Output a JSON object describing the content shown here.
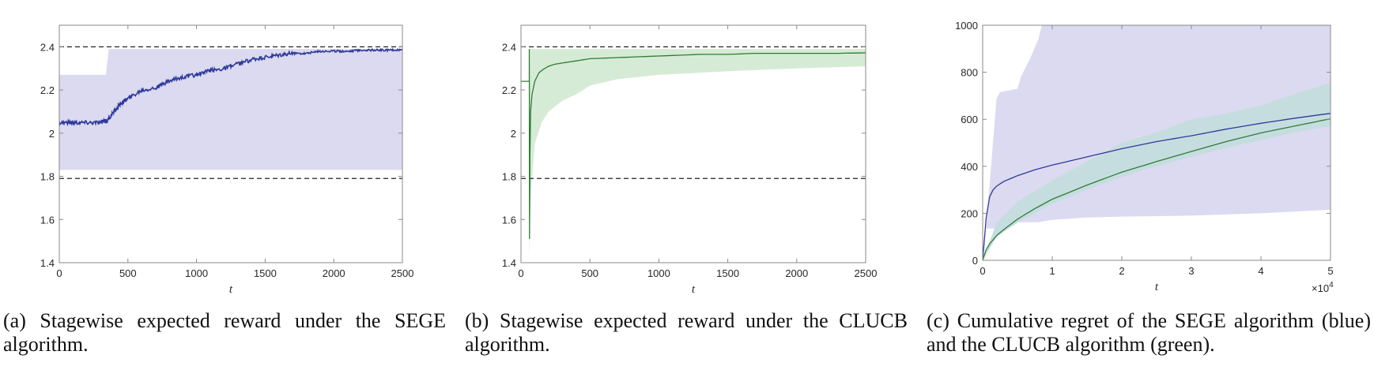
{
  "chart_data": [
    {
      "id": "a",
      "type": "line",
      "title": "",
      "xlabel": "t",
      "ylabel": "",
      "xlim": [
        0,
        2500
      ],
      "ylim": [
        1.4,
        2.5
      ],
      "xticks": [
        0,
        500,
        1000,
        1500,
        2000,
        2500
      ],
      "yticks": [
        1.4,
        1.6,
        1.8,
        2,
        2.2,
        2.4
      ],
      "xtick_labels": [
        "0",
        "500",
        "1000",
        "1500",
        "2000",
        "2500"
      ],
      "ytick_labels": [
        "1.4",
        "1.6",
        "1.8",
        "2",
        "2.2",
        "2.4"
      ],
      "grid": false,
      "reference_lines": [
        2.4,
        1.79
      ],
      "series": [
        {
          "name": "SEGE expected reward (mean)",
          "color": "#2e3a9a",
          "x": [
            0,
            100,
            200,
            300,
            350,
            400,
            450,
            500,
            600,
            700,
            800,
            900,
            1000,
            1100,
            1200,
            1300,
            1400,
            1500,
            1600,
            1700,
            1800,
            1900,
            2000,
            2100,
            2200,
            2300,
            2400,
            2500
          ],
          "y": [
            2.05,
            2.05,
            2.05,
            2.05,
            2.06,
            2.1,
            2.14,
            2.16,
            2.2,
            2.21,
            2.24,
            2.26,
            2.27,
            2.29,
            2.3,
            2.32,
            2.34,
            2.35,
            2.36,
            2.37,
            2.37,
            2.38,
            2.38,
            2.38,
            2.385,
            2.385,
            2.385,
            2.385
          ]
        },
        {
          "name": "SEGE range band",
          "color": "#dcdaf0",
          "x": [
            0,
            340,
            360,
            2500
          ],
          "upper": [
            2.27,
            2.27,
            2.39,
            2.39
          ],
          "lower": [
            1.83,
            1.83,
            1.83,
            1.83
          ]
        }
      ],
      "caption": "(a) Stagewise expected reward under the SEGE algorithm."
    },
    {
      "id": "b",
      "type": "line",
      "title": "",
      "xlabel": "t",
      "ylabel": "",
      "xlim": [
        0,
        2500
      ],
      "ylim": [
        1.4,
        2.5
      ],
      "xticks": [
        0,
        500,
        1000,
        1500,
        2000,
        2500
      ],
      "yticks": [
        1.4,
        1.6,
        1.8,
        2,
        2.2,
        2.4
      ],
      "xtick_labels": [
        "0",
        "500",
        "1000",
        "1500",
        "2000",
        "2500"
      ],
      "ytick_labels": [
        "1.4",
        "1.6",
        "1.8",
        "2",
        "2.2",
        "2.4"
      ],
      "grid": false,
      "reference_lines": [
        2.4,
        1.79
      ],
      "series": [
        {
          "name": "CLUCB expected reward (mean)",
          "color": "#2e7d32",
          "x": [
            0,
            60,
            60,
            62,
            65,
            70,
            80,
            100,
            130,
            160,
            200,
            250,
            300,
            400,
            500,
            700,
            900,
            1100,
            1300,
            1500,
            1700,
            1900,
            2100,
            2300,
            2500
          ],
          "y": [
            2.24,
            2.24,
            2.39,
            1.51,
            1.9,
            2.1,
            2.18,
            2.24,
            2.28,
            2.295,
            2.31,
            2.32,
            2.325,
            2.335,
            2.345,
            2.35,
            2.355,
            2.36,
            2.365,
            2.365,
            2.37,
            2.37,
            2.37,
            2.37,
            2.372
          ]
        },
        {
          "name": "CLUCB range band",
          "color": "#d6ebd6",
          "x": [
            60,
            70,
            100,
            150,
            200,
            300,
            400,
            500,
            700,
            1000,
            1300,
            1600,
            2000,
            2500
          ],
          "upper": [
            2.39,
            2.39,
            2.39,
            2.39,
            2.39,
            2.39,
            2.39,
            2.39,
            2.39,
            2.39,
            2.39,
            2.39,
            2.39,
            2.39
          ],
          "lower": [
            1.42,
            1.7,
            1.95,
            2.05,
            2.1,
            2.15,
            2.18,
            2.22,
            2.25,
            2.27,
            2.28,
            2.29,
            2.3,
            2.31
          ]
        }
      ],
      "caption": "(b) Stagewise expected reward under the CLUCB algorithm."
    },
    {
      "id": "c",
      "type": "line",
      "title": "",
      "xlabel": "t",
      "x_multiplier": "×10^4",
      "ylabel": "",
      "xlim": [
        0,
        5
      ],
      "ylim": [
        0,
        1000
      ],
      "xticks": [
        0,
        1,
        2,
        3,
        4,
        5
      ],
      "yticks": [
        0,
        200,
        400,
        600,
        800,
        1000
      ],
      "xtick_labels": [
        "0",
        "1",
        "2",
        "3",
        "4",
        "5"
      ],
      "ytick_labels": [
        "0",
        "200",
        "400",
        "600",
        "800",
        "1000"
      ],
      "grid": false,
      "series": [
        {
          "name": "SEGE cumulative regret (blue)",
          "color": "#2e3a9a",
          "x": [
            0,
            0.05,
            0.1,
            0.15,
            0.2,
            0.3,
            0.5,
            0.75,
            1,
            1.5,
            2,
            2.5,
            3,
            3.5,
            4,
            4.5,
            5
          ],
          "y": [
            0,
            180,
            270,
            300,
            315,
            335,
            360,
            385,
            405,
            440,
            475,
            505,
            530,
            558,
            583,
            605,
            625
          ]
        },
        {
          "name": "CLUCB cumulative regret (green)",
          "color": "#2e7d32",
          "x": [
            0,
            0.05,
            0.1,
            0.2,
            0.3,
            0.5,
            0.75,
            1,
            1.5,
            2,
            2.5,
            3,
            3.5,
            4,
            4.5,
            5
          ],
          "y": [
            0,
            45,
            70,
            105,
            130,
            175,
            220,
            260,
            320,
            375,
            420,
            463,
            505,
            542,
            572,
            602
          ]
        },
        {
          "name": "SEGE range band",
          "color": "#dcdaf0",
          "x": [
            0,
            0.05,
            0.2,
            0.25,
            0.5,
            0.55,
            0.7,
            0.8,
            0.85,
            1,
            1.5,
            2,
            3,
            4,
            5
          ],
          "upper": [
            0,
            140,
            690,
            715,
            730,
            780,
            870,
            940,
            1000,
            1000,
            1000,
            1000,
            1000,
            1000,
            1000
          ],
          "lower": [
            0,
            135,
            135,
            160,
            162,
            162,
            162,
            162,
            165,
            172,
            182,
            186,
            190,
            200,
            215
          ]
        },
        {
          "name": "CLUCB range band",
          "color": "#c6dde0",
          "x": [
            0,
            0.2,
            0.5,
            1,
            1.5,
            2,
            2.5,
            3,
            3.5,
            4,
            4.5,
            5
          ],
          "upper": [
            0,
            160,
            250,
            340,
            420,
            500,
            545,
            600,
            625,
            660,
            710,
            755
          ],
          "lower": [
            0,
            100,
            160,
            240,
            300,
            355,
            400,
            440,
            478,
            510,
            545,
            570
          ]
        }
      ],
      "caption": "(c) Cumulative regret of the SEGE algorithm (blue) and the CLUCB algorithm (green)."
    }
  ],
  "captions": {
    "a": "(a) Stagewise expected reward under the SEGE algorithm.",
    "b": "(b) Stagewise expected reward under the CLUCB algorithm.",
    "c": "(c) Cumulative regret of the SEGE algorithm (blue) and the CLUCB algorithm (green)."
  },
  "axes": {
    "a": {
      "xlabel": "t"
    },
    "b": {
      "xlabel": "t"
    },
    "c": {
      "xlabel": "t",
      "multiplier_base": "×10",
      "multiplier_exp": "4"
    }
  }
}
